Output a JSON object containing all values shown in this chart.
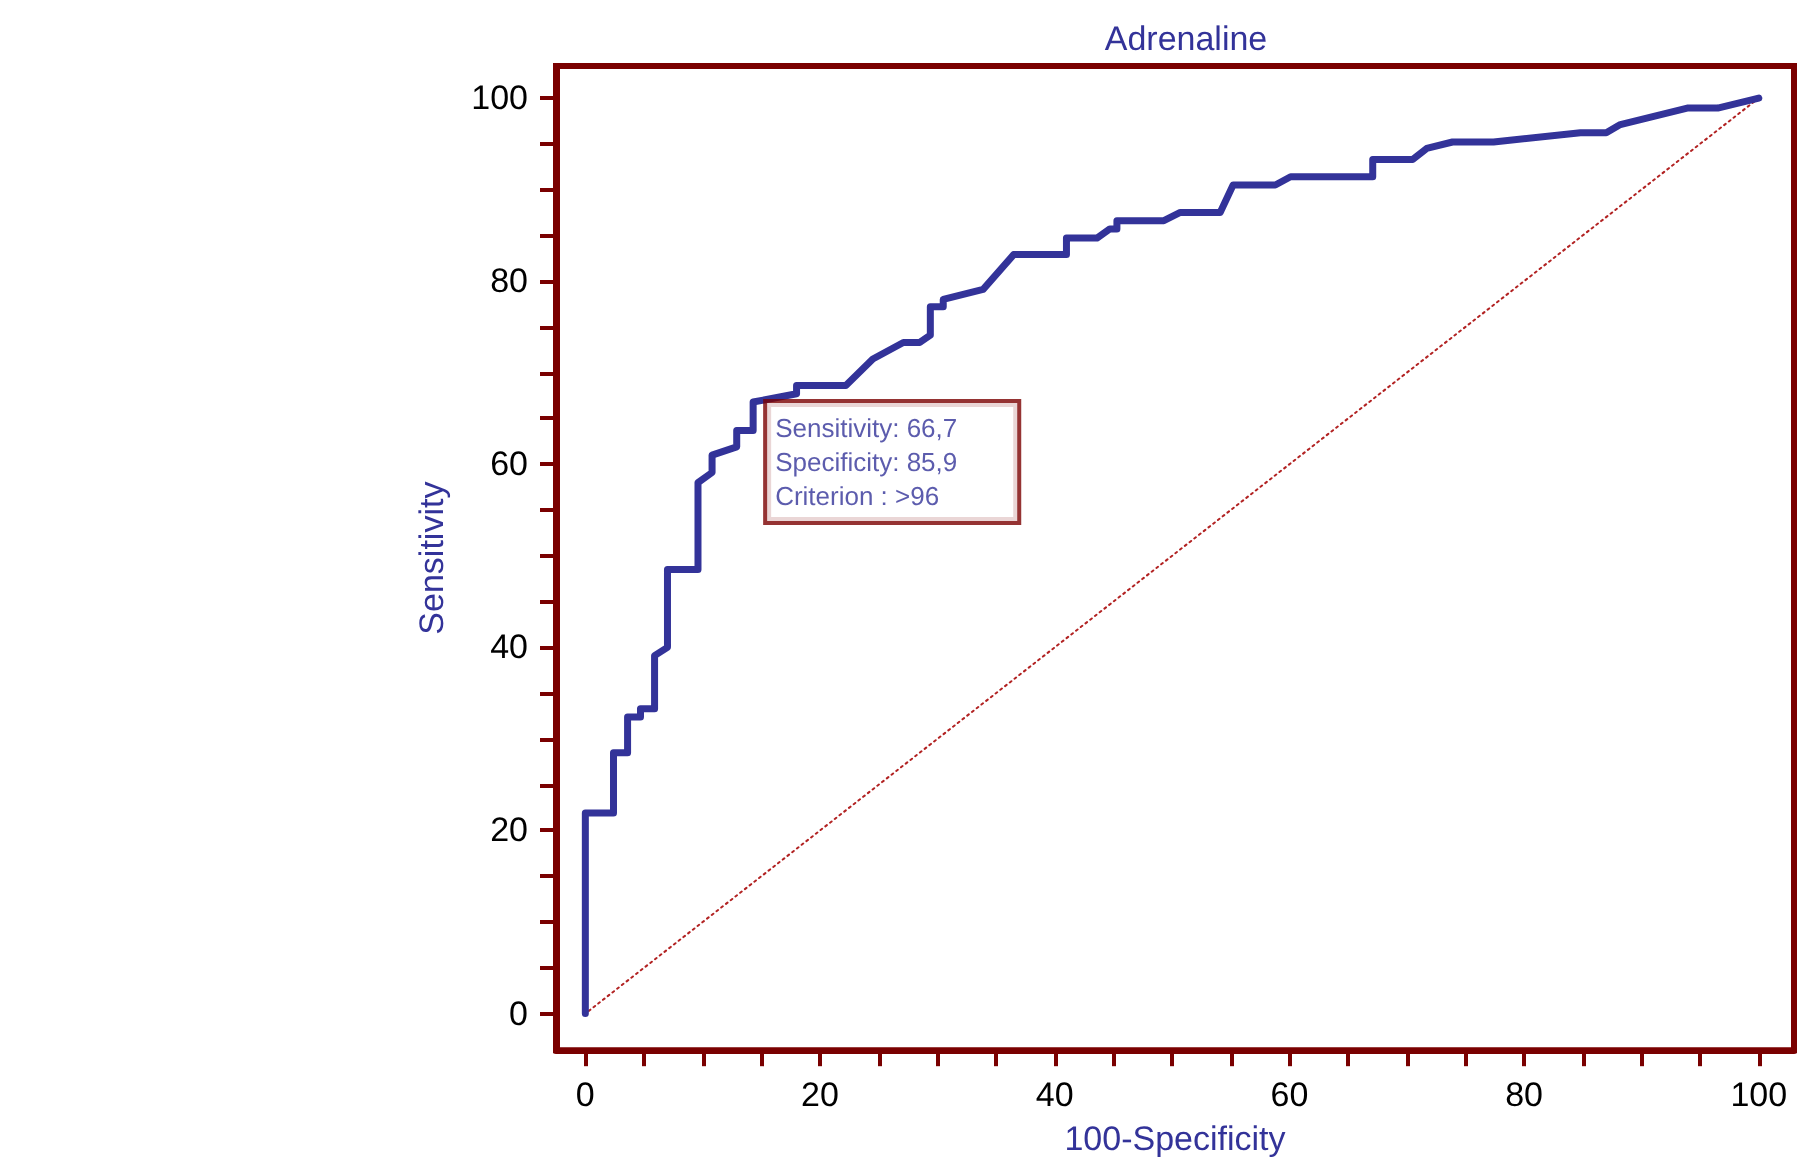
{
  "chart_data": {
    "type": "line",
    "title": "Adrenaline",
    "xlabel": "100-Specificity",
    "ylabel": "Sensitivity",
    "xlim": [
      -2.5,
      103
    ],
    "ylim": [
      -4,
      103.5
    ],
    "xticks": [
      0,
      {
        "value": 5,
        "label": null
      },
      {
        "value": 10,
        "label": null
      },
      {
        "value": 15,
        "label": null
      },
      20,
      {
        "value": 25,
        "label": null
      },
      {
        "value": 30,
        "label": null
      },
      {
        "value": 35,
        "label": null
      },
      40,
      {
        "value": 45,
        "label": null
      },
      {
        "value": 50,
        "label": null
      },
      {
        "value": 55,
        "label": null
      },
      60,
      {
        "value": 65,
        "label": null
      },
      {
        "value": 70,
        "label": null
      },
      {
        "value": 75,
        "label": null
      },
      80,
      {
        "value": 85,
        "label": null
      },
      {
        "value": 90,
        "label": null
      },
      {
        "value": 95,
        "label": null
      },
      100
    ],
    "yticks": [
      0,
      {
        "value": 5,
        "label": null
      },
      {
        "value": 10,
        "label": null
      },
      {
        "value": 15,
        "label": null
      },
      20,
      {
        "value": 25,
        "label": null
      },
      {
        "value": 30,
        "label": null
      },
      {
        "value": 35,
        "label": null
      },
      40,
      {
        "value": 45,
        "label": null
      },
      {
        "value": 50,
        "label": null
      },
      {
        "value": 55,
        "label": null
      },
      60,
      {
        "value": 65,
        "label": null
      },
      {
        "value": 70,
        "label": null
      },
      {
        "value": 75,
        "label": null
      },
      80,
      {
        "value": 85,
        "label": null
      },
      {
        "value": 90,
        "label": null
      },
      {
        "value": 95,
        "label": null
      },
      100
    ],
    "grid": false,
    "marker": "none",
    "series": [
      {
        "color": "#333399",
        "line_style": "solid",
        "x": [
          0,
          0,
          2.4,
          2.4,
          3.6,
          3.6,
          4.7,
          4.7,
          5.9,
          5.9,
          7.0,
          7.0,
          9.6,
          9.6,
          10.8,
          10.8,
          12.9,
          12.9,
          14.3,
          14.3,
          18.0,
          18.0,
          22.2,
          24.5,
          27.1,
          28.5,
          29.4,
          29.4,
          30.5,
          30.5,
          33.9,
          36.5,
          41.0,
          41.0,
          43.6,
          44.7,
          45.3,
          45.3,
          49.3,
          50.7,
          54.1,
          55.2,
          58.8,
          60.1,
          67.1,
          67.1,
          70.5,
          71.7,
          73.9,
          77.4,
          84.8,
          87.0,
          88.2,
          93.9,
          96.5,
          100
        ],
        "values": [
          0,
          21.9,
          21.9,
          28.5,
          28.5,
          32.4,
          32.4,
          33.3,
          33.3,
          39.1,
          40.0,
          48.5,
          48.5,
          58.0,
          59.1,
          61.0,
          61.9,
          63.7,
          63.7,
          66.8,
          67.7,
          68.6,
          68.6,
          71.5,
          73.3,
          73.3,
          74.1,
          77.2,
          77.2,
          78.0,
          79.1,
          82.9,
          82.9,
          84.7,
          84.7,
          85.7,
          85.7,
          86.6,
          86.6,
          87.5,
          87.5,
          90.5,
          90.5,
          91.4,
          91.4,
          93.3,
          93.3,
          94.5,
          95.2,
          95.2,
          96.2,
          96.2,
          97.1,
          98.9,
          98.9,
          100
        ]
      },
      {
        "type": "line",
        "color": "#b22222",
        "line_style": "dotted",
        "x": [
          100,
          0
        ],
        "values": [
          100,
          0
        ]
      }
    ],
    "annotations": [
      {
        "text": "Sensitivity: 66,7\nSpecificity: 85,9\nCriterion : >96",
        "x": 14.3,
        "y": 66.8
      }
    ]
  }
}
